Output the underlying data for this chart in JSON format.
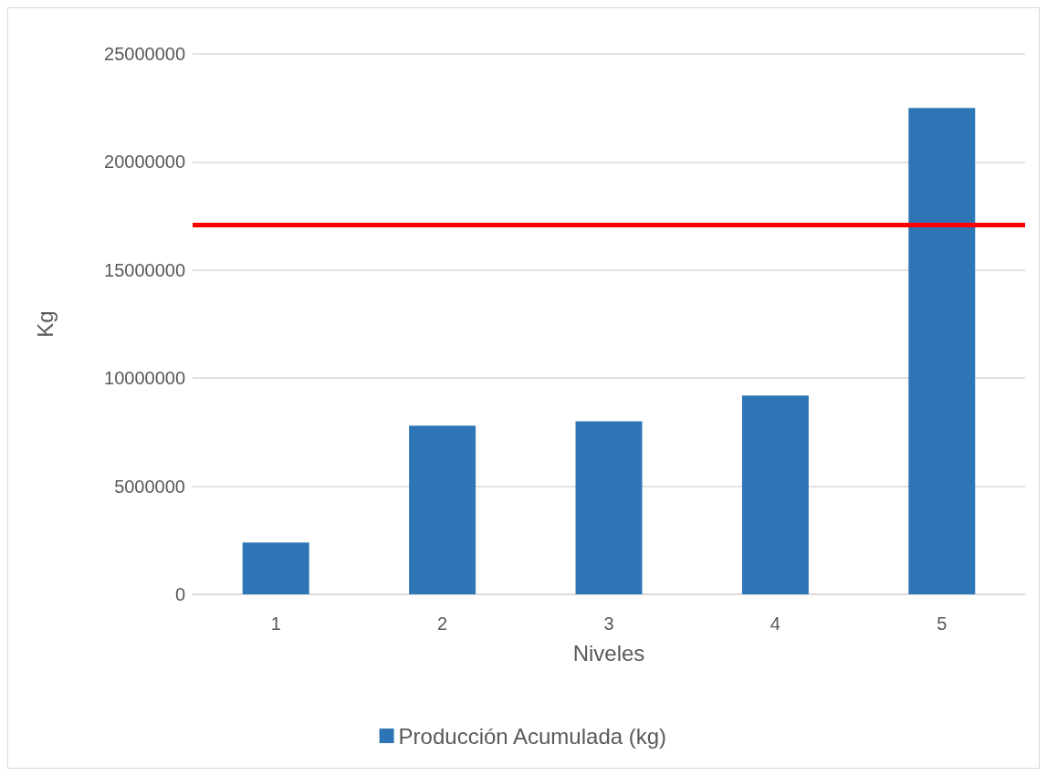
{
  "chart_data": {
    "type": "bar",
    "xlabel": "Niveles",
    "ylabel": "Kg",
    "categories": [
      "1",
      "2",
      "3",
      "4",
      "5"
    ],
    "series": [
      {
        "name": "Producción Acumulada (kg)",
        "color": "#2e75b6",
        "values": [
          2400000,
          7800000,
          8000000,
          9200000,
          22500000
        ]
      }
    ],
    "ylim": [
      0,
      25000000
    ],
    "yticks": [
      0,
      5000000,
      10000000,
      15000000,
      20000000,
      25000000
    ],
    "grid": "y",
    "legend": "bottom",
    "ref_lines": [
      {
        "axis": "y",
        "value": 17100000,
        "color": "#ff0000",
        "line_style": "solid"
      }
    ]
  }
}
